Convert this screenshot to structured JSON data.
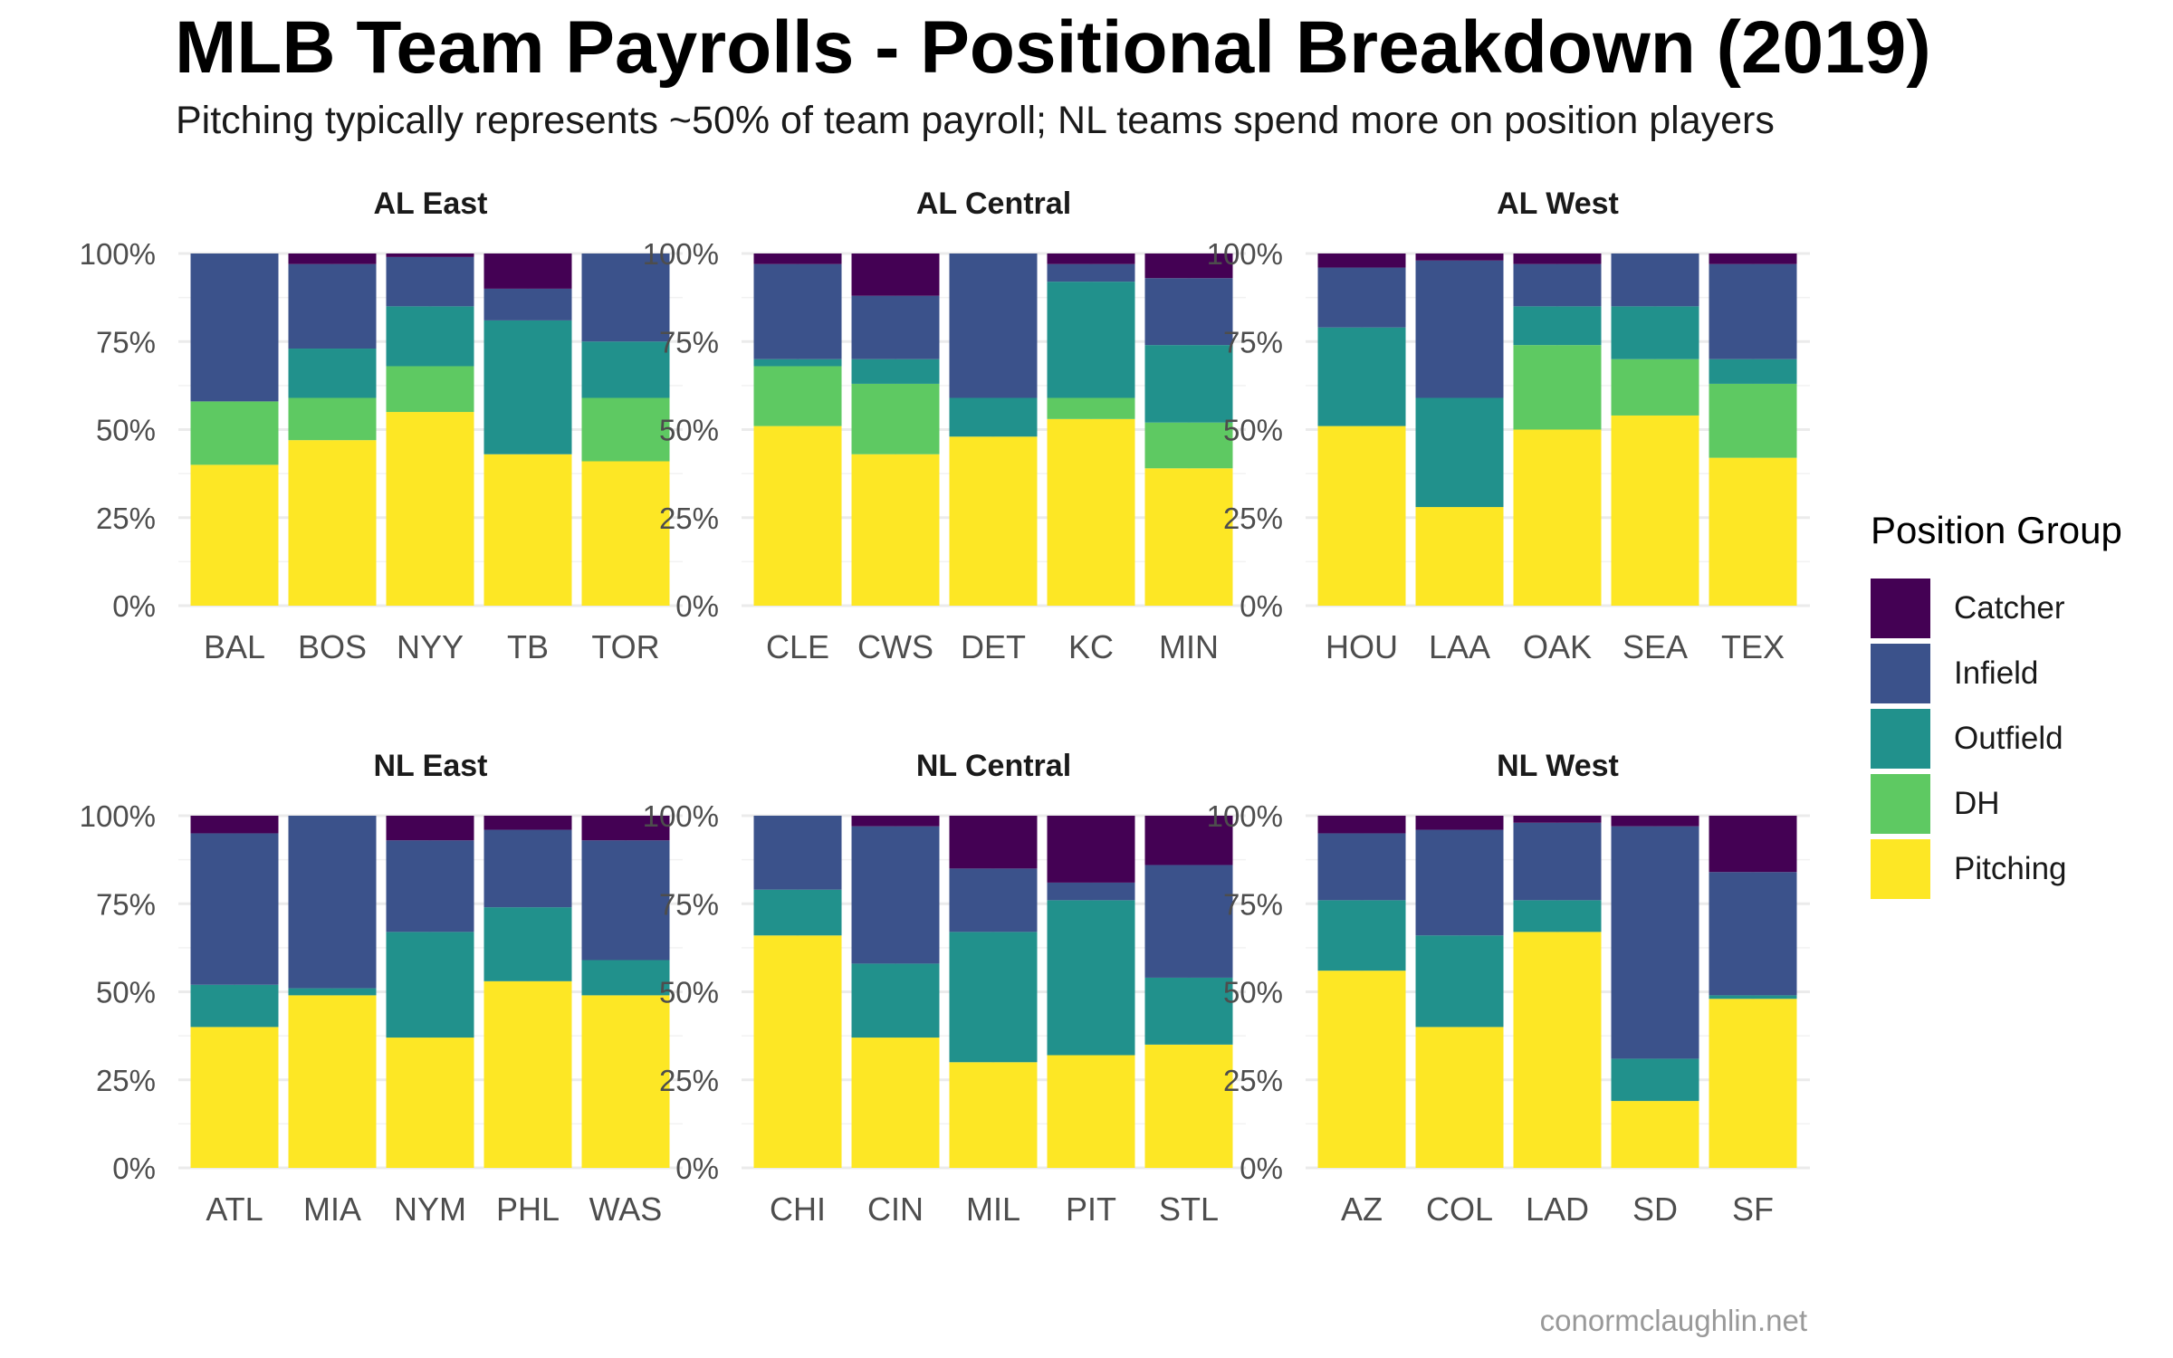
{
  "title": "MLB Team Payrolls - Positional Breakdown (2019)",
  "subtitle": "Pitching typically represents ~50% of team payroll; NL teams spend more on position players",
  "caption": "conormclaughlin.net",
  "legend": {
    "title": "Position Group",
    "items": [
      {
        "label": "Catcher",
        "color": "#440154"
      },
      {
        "label": "Infield",
        "color": "#3b528b"
      },
      {
        "label": "Outfield",
        "color": "#21918c"
      },
      {
        "label": "DH",
        "color": "#5ec962"
      },
      {
        "label": "Pitching",
        "color": "#fde725"
      }
    ]
  },
  "chart_data": {
    "type": "bar",
    "stacked": true,
    "ylim": [
      0,
      1
    ],
    "y_ticks": [
      "0%",
      "25%",
      "50%",
      "75%",
      "100%"
    ],
    "stack_order_bottom_to_top": [
      "Pitching",
      "DH",
      "Outfield",
      "Infield",
      "Catcher"
    ],
    "facets": [
      {
        "name": "AL East",
        "teams": [
          {
            "team": "BAL",
            "Pitching": 0.4,
            "DH": 0.18,
            "Outfield": 0.0,
            "Infield": 0.42,
            "Catcher": 0.0
          },
          {
            "team": "BOS",
            "Pitching": 0.47,
            "DH": 0.12,
            "Outfield": 0.14,
            "Infield": 0.24,
            "Catcher": 0.03
          },
          {
            "team": "NYY",
            "Pitching": 0.55,
            "DH": 0.13,
            "Outfield": 0.17,
            "Infield": 0.14,
            "Catcher": 0.01
          },
          {
            "team": "TB",
            "Pitching": 0.43,
            "DH": 0.0,
            "Outfield": 0.38,
            "Infield": 0.09,
            "Catcher": 0.1
          },
          {
            "team": "TOR",
            "Pitching": 0.41,
            "DH": 0.18,
            "Outfield": 0.16,
            "Infield": 0.25,
            "Catcher": 0.0
          }
        ]
      },
      {
        "name": "AL Central",
        "teams": [
          {
            "team": "CLE",
            "Pitching": 0.51,
            "DH": 0.17,
            "Outfield": 0.02,
            "Infield": 0.27,
            "Catcher": 0.03
          },
          {
            "team": "CWS",
            "Pitching": 0.43,
            "DH": 0.2,
            "Outfield": 0.07,
            "Infield": 0.18,
            "Catcher": 0.12
          },
          {
            "team": "DET",
            "Pitching": 0.48,
            "DH": 0.0,
            "Outfield": 0.11,
            "Infield": 0.41,
            "Catcher": 0.0
          },
          {
            "team": "KC",
            "Pitching": 0.53,
            "DH": 0.06,
            "Outfield": 0.33,
            "Infield": 0.05,
            "Catcher": 0.03
          },
          {
            "team": "MIN",
            "Pitching": 0.39,
            "DH": 0.13,
            "Outfield": 0.22,
            "Infield": 0.19,
            "Catcher": 0.07
          }
        ]
      },
      {
        "name": "AL West",
        "teams": [
          {
            "team": "HOU",
            "Pitching": 0.51,
            "DH": 0.0,
            "Outfield": 0.28,
            "Infield": 0.17,
            "Catcher": 0.04
          },
          {
            "team": "LAA",
            "Pitching": 0.28,
            "DH": 0.0,
            "Outfield": 0.31,
            "Infield": 0.39,
            "Catcher": 0.02
          },
          {
            "team": "OAK",
            "Pitching": 0.5,
            "DH": 0.24,
            "Outfield": 0.11,
            "Infield": 0.12,
            "Catcher": 0.03
          },
          {
            "team": "SEA",
            "Pitching": 0.54,
            "DH": 0.16,
            "Outfield": 0.15,
            "Infield": 0.15,
            "Catcher": 0.0
          },
          {
            "team": "TEX",
            "Pitching": 0.42,
            "DH": 0.21,
            "Outfield": 0.07,
            "Infield": 0.27,
            "Catcher": 0.03
          }
        ]
      },
      {
        "name": "NL East",
        "teams": [
          {
            "team": "ATL",
            "Pitching": 0.4,
            "DH": 0.0,
            "Outfield": 0.12,
            "Infield": 0.43,
            "Catcher": 0.05
          },
          {
            "team": "MIA",
            "Pitching": 0.49,
            "DH": 0.0,
            "Outfield": 0.02,
            "Infield": 0.49,
            "Catcher": 0.0
          },
          {
            "team": "NYM",
            "Pitching": 0.37,
            "DH": 0.0,
            "Outfield": 0.3,
            "Infield": 0.26,
            "Catcher": 0.07
          },
          {
            "team": "PHL",
            "Pitching": 0.53,
            "DH": 0.0,
            "Outfield": 0.21,
            "Infield": 0.22,
            "Catcher": 0.04
          },
          {
            "team": "WAS",
            "Pitching": 0.49,
            "DH": 0.0,
            "Outfield": 0.1,
            "Infield": 0.34,
            "Catcher": 0.07
          }
        ]
      },
      {
        "name": "NL Central",
        "teams": [
          {
            "team": "CHI",
            "Pitching": 0.66,
            "DH": 0.0,
            "Outfield": 0.13,
            "Infield": 0.21,
            "Catcher": 0.0
          },
          {
            "team": "CIN",
            "Pitching": 0.37,
            "DH": 0.0,
            "Outfield": 0.21,
            "Infield": 0.39,
            "Catcher": 0.03
          },
          {
            "team": "MIL",
            "Pitching": 0.3,
            "DH": 0.0,
            "Outfield": 0.37,
            "Infield": 0.18,
            "Catcher": 0.15
          },
          {
            "team": "PIT",
            "Pitching": 0.32,
            "DH": 0.0,
            "Outfield": 0.44,
            "Infield": 0.05,
            "Catcher": 0.19
          },
          {
            "team": "STL",
            "Pitching": 0.35,
            "DH": 0.0,
            "Outfield": 0.19,
            "Infield": 0.32,
            "Catcher": 0.14
          }
        ]
      },
      {
        "name": "NL West",
        "teams": [
          {
            "team": "AZ",
            "Pitching": 0.56,
            "DH": 0.0,
            "Outfield": 0.2,
            "Infield": 0.19,
            "Catcher": 0.05
          },
          {
            "team": "COL",
            "Pitching": 0.4,
            "DH": 0.0,
            "Outfield": 0.26,
            "Infield": 0.3,
            "Catcher": 0.04
          },
          {
            "team": "LAD",
            "Pitching": 0.67,
            "DH": 0.0,
            "Outfield": 0.09,
            "Infield": 0.22,
            "Catcher": 0.02
          },
          {
            "team": "SD",
            "Pitching": 0.19,
            "DH": 0.0,
            "Outfield": 0.12,
            "Infield": 0.66,
            "Catcher": 0.03
          },
          {
            "team": "SF",
            "Pitching": 0.48,
            "DH": 0.0,
            "Outfield": 0.01,
            "Infield": 0.35,
            "Catcher": 0.16
          }
        ]
      }
    ]
  }
}
